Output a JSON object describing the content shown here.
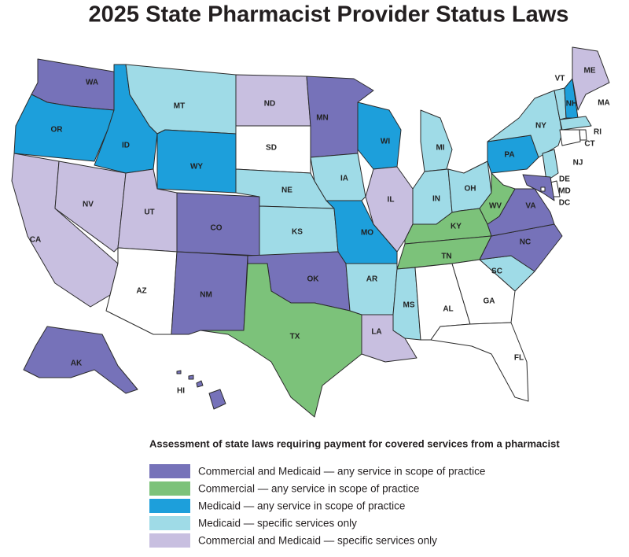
{
  "title": "2025 State Pharmacist Provider Status Laws",
  "legend": {
    "title": "Assessment of state laws requiring payment for covered services from a pharmacist",
    "items": [
      {
        "label": "Commercial and Medicaid — any service in scope of practice",
        "color": "#7672b9"
      },
      {
        "label": "Commercial — any service in scope of practice",
        "color": "#7cc27a"
      },
      {
        "label": "Medicaid — any service in scope of practice",
        "color": "#1d9fdb"
      },
      {
        "label": "Medicaid — specific services only",
        "color": "#9fdbe7"
      },
      {
        "label": "Commercial and Medicaid — specific services only",
        "color": "#c8bfe0"
      }
    ]
  },
  "states": [
    {
      "label": "WA",
      "fill": "#7672b9"
    },
    {
      "label": "OR",
      "fill": "#1d9fdb"
    },
    {
      "label": "CA",
      "fill": "#c8bfe0"
    },
    {
      "label": "NV",
      "fill": "#c8bfe0"
    },
    {
      "label": "ID",
      "fill": "#1d9fdb"
    },
    {
      "label": "MT",
      "fill": "#9fdbe7"
    },
    {
      "label": "WY",
      "fill": "#1d9fdb"
    },
    {
      "label": "UT",
      "fill": "#c8bfe0"
    },
    {
      "label": "AZ",
      "fill": "#ffffff"
    },
    {
      "label": "CO",
      "fill": "#7672b9"
    },
    {
      "label": "NM",
      "fill": "#7672b9"
    },
    {
      "label": "ND",
      "fill": "#c8bfe0"
    },
    {
      "label": "SD",
      "fill": "#ffffff"
    },
    {
      "label": "NE",
      "fill": "#9fdbe7"
    },
    {
      "label": "KS",
      "fill": "#9fdbe7"
    },
    {
      "label": "OK",
      "fill": "#7672b9"
    },
    {
      "label": "TX",
      "fill": "#7cc27a"
    },
    {
      "label": "MN",
      "fill": "#7672b9"
    },
    {
      "label": "IA",
      "fill": "#9fdbe7"
    },
    {
      "label": "MO",
      "fill": "#1d9fdb"
    },
    {
      "label": "AR",
      "fill": "#9fdbe7"
    },
    {
      "label": "LA",
      "fill": "#c8bfe0"
    },
    {
      "label": "WI",
      "fill": "#1d9fdb"
    },
    {
      "label": "IL",
      "fill": "#c8bfe0"
    },
    {
      "label": "MI",
      "fill": "#9fdbe7"
    },
    {
      "label": "IN",
      "fill": "#9fdbe7"
    },
    {
      "label": "OH",
      "fill": "#9fdbe7"
    },
    {
      "label": "KY",
      "fill": "#7cc27a"
    },
    {
      "label": "TN",
      "fill": "#7cc27a"
    },
    {
      "label": "MS",
      "fill": "#9fdbe7"
    },
    {
      "label": "AL",
      "fill": "#ffffff"
    },
    {
      "label": "GA",
      "fill": "#ffffff"
    },
    {
      "label": "FL",
      "fill": "#ffffff"
    },
    {
      "label": "SC",
      "fill": "#9fdbe7"
    },
    {
      "label": "NC",
      "fill": "#7672b9"
    },
    {
      "label": "VA",
      "fill": "#7672b9"
    },
    {
      "label": "WV",
      "fill": "#7cc27a"
    },
    {
      "label": "PA",
      "fill": "#1d9fdb"
    },
    {
      "label": "NY",
      "fill": "#9fdbe7"
    },
    {
      "label": "VT",
      "fill": "#9fdbe7"
    },
    {
      "label": "NH",
      "fill": "#1d9fdb"
    },
    {
      "label": "ME",
      "fill": "#c8bfe0"
    },
    {
      "label": "MA",
      "fill": "#9fdbe7"
    },
    {
      "label": "RI",
      "fill": "#ffffff"
    },
    {
      "label": "CT",
      "fill": "#ffffff"
    },
    {
      "label": "NJ",
      "fill": "#9fdbe7"
    },
    {
      "label": "DE",
      "fill": "#ffffff"
    },
    {
      "label": "MD",
      "fill": "#7672b9"
    },
    {
      "label": "DC",
      "fill": "#ffffff"
    },
    {
      "label": "AK",
      "fill": "#7672b9"
    },
    {
      "label": "HI",
      "fill": "#7672b9"
    }
  ]
}
